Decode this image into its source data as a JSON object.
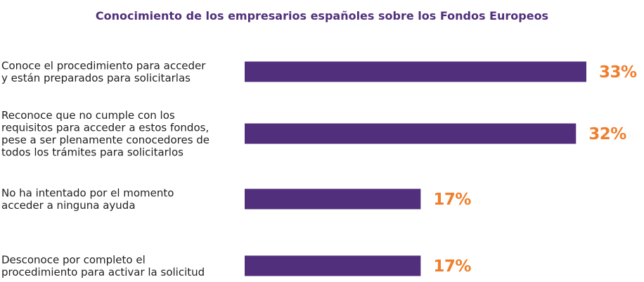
{
  "colors": {
    "bar": "#522f7c",
    "title": "#522f7c",
    "value_label": "#ef7e2d",
    "category_text": "#1f1f1f"
  },
  "chart_data": {
    "type": "bar",
    "orientation": "horizontal",
    "title": "Conocimiento de los empresarios españoles sobre los Fondos Europeos",
    "xlabel": "",
    "ylabel": "",
    "grid": false,
    "legend": "none",
    "xlim": [
      0,
      33
    ],
    "categories": [
      [
        "Conoce el procedimiento para acceder",
        "y están preparados para solicitarlas"
      ],
      [
        "Reconoce que no cumple con los",
        "requisitos para acceder a estos fondos,",
        "pese a ser plenamente conocedores de",
        "todos los trámites para solicitarlos"
      ],
      [
        "No ha intentado por el momento",
        "acceder a ninguna ayuda"
      ],
      [
        "Desconoce por completo el",
        "procedimiento para activar la solicitud"
      ]
    ],
    "values": [
      33,
      32,
      17,
      17
    ],
    "value_labels": [
      "33%",
      "32%",
      "17%",
      "17%"
    ]
  }
}
